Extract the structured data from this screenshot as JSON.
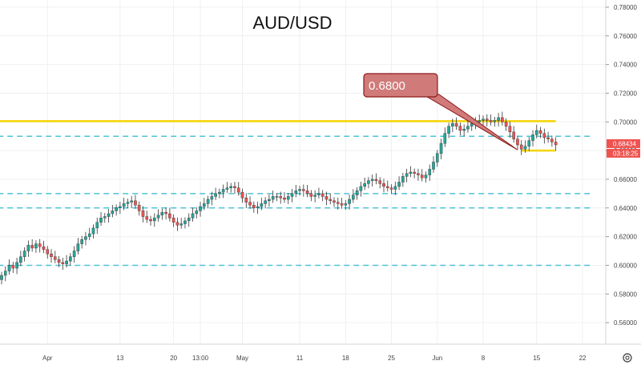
{
  "chart_data": {
    "type": "candlestick",
    "title": "AUD/USD",
    "ylim": [
      0.545,
      0.785
    ],
    "y_ticks": [
      "0.78000",
      "0.76000",
      "0.74000",
      "0.72000",
      "0.70000",
      "0.68000",
      "0.66000",
      "0.64000",
      "0.62000",
      "0.60000",
      "0.58000",
      "0.56000"
    ],
    "x_ticks": [
      {
        "label": "Apr",
        "bar": 12
      },
      {
        "label": "13",
        "bar": 31
      },
      {
        "label": "20",
        "bar": 45
      },
      {
        "label": "13:00",
        "bar": 52
      },
      {
        "label": "May",
        "bar": 63
      },
      {
        "label": "11",
        "bar": 78
      },
      {
        "label": "18",
        "bar": 90
      },
      {
        "label": "25",
        "bar": 102
      },
      {
        "label": "Jun",
        "bar": 114
      },
      {
        "label": "8",
        "bar": 126
      },
      {
        "label": "15",
        "bar": 140
      },
      {
        "label": "22",
        "bar": 152
      }
    ],
    "closes": [
      0.593,
      0.596,
      0.6,
      0.598,
      0.602,
      0.606,
      0.61,
      0.614,
      0.612,
      0.615,
      0.613,
      0.611,
      0.608,
      0.606,
      0.604,
      0.602,
      0.601,
      0.603,
      0.606,
      0.61,
      0.615,
      0.618,
      0.62,
      0.622,
      0.626,
      0.63,
      0.633,
      0.634,
      0.636,
      0.638,
      0.64,
      0.641,
      0.643,
      0.644,
      0.645,
      0.642,
      0.638,
      0.634,
      0.632,
      0.631,
      0.633,
      0.635,
      0.637,
      0.636,
      0.633,
      0.63,
      0.628,
      0.629,
      0.631,
      0.633,
      0.636,
      0.638,
      0.641,
      0.643,
      0.646,
      0.648,
      0.65,
      0.651,
      0.653,
      0.654,
      0.655,
      0.654,
      0.651,
      0.647,
      0.644,
      0.642,
      0.64,
      0.641,
      0.643,
      0.645,
      0.646,
      0.648,
      0.648,
      0.647,
      0.646,
      0.648,
      0.65,
      0.652,
      0.653,
      0.652,
      0.65,
      0.648,
      0.649,
      0.65,
      0.648,
      0.646,
      0.645,
      0.644,
      0.643,
      0.642,
      0.643,
      0.646,
      0.649,
      0.652,
      0.655,
      0.657,
      0.659,
      0.66,
      0.659,
      0.657,
      0.655,
      0.654,
      0.653,
      0.655,
      0.658,
      0.662,
      0.664,
      0.665,
      0.664,
      0.663,
      0.661,
      0.663,
      0.667,
      0.672,
      0.678,
      0.685,
      0.692,
      0.697,
      0.699,
      0.697,
      0.694,
      0.695,
      0.697,
      0.699,
      0.7,
      0.701,
      0.702,
      0.701,
      0.7,
      0.701,
      0.703,
      0.7,
      0.697,
      0.693,
      0.688,
      0.684,
      0.681,
      0.683,
      0.687,
      0.691,
      0.694,
      0.692,
      0.689,
      0.688,
      0.686,
      0.684
    ],
    "h_levels": [
      {
        "value": 0.7005,
        "style": "solid",
        "color": "#f5d400",
        "x0_bar": -1,
        "x1_bar": 145
      },
      {
        "value": 0.69,
        "style": "dashed",
        "color": "#4fc3d6",
        "x0_bar": -1,
        "x1_bar": 155
      },
      {
        "value": 0.65,
        "style": "dashed",
        "color": "#4fc3d6",
        "x0_bar": -1,
        "x1_bar": 155
      },
      {
        "value": 0.64,
        "style": "dashed",
        "color": "#4fc3d6",
        "x0_bar": -1,
        "x1_bar": 155
      },
      {
        "value": 0.6,
        "style": "dashed",
        "color": "#4fc3d6",
        "x0_bar": -1,
        "x1_bar": 155
      },
      {
        "value": 0.68,
        "style": "solid",
        "color": "#f5d400",
        "x0_bar": 136,
        "x1_bar": 145
      }
    ],
    "callout": {
      "label": "0.6800",
      "point_bar": 135,
      "point_value": 0.6805
    },
    "price_tag": {
      "value": "0.68434",
      "timer": "03:18:25"
    },
    "colors": {
      "up": "#26a69a",
      "down": "#ef5350",
      "callout_bg": "#d07a7a",
      "callout_border": "#8b1a1a"
    }
  }
}
